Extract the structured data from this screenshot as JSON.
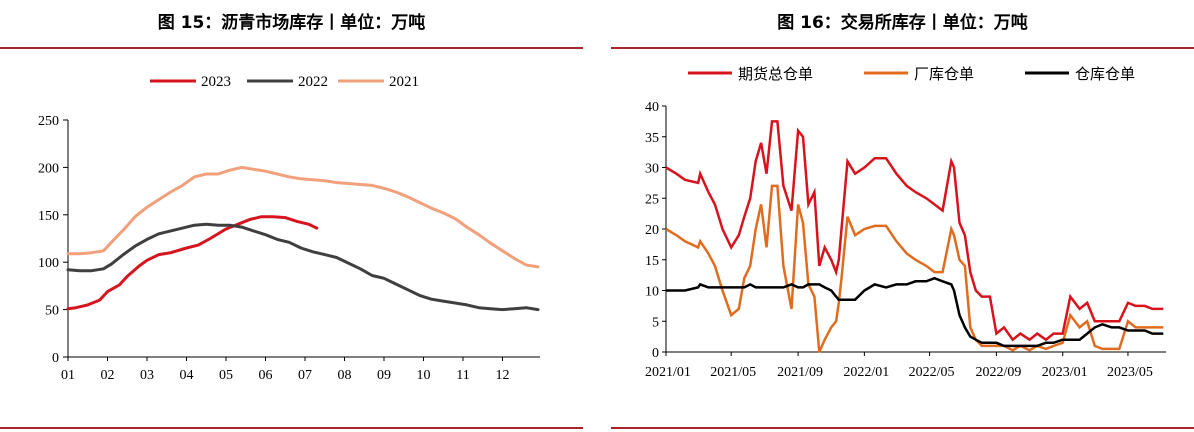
{
  "left": {
    "title": "图 15：沥青市场库存丨单位：万吨"
  },
  "right": {
    "title": "图 16：交易所库存丨单位：万吨"
  },
  "chart_data": [
    {
      "type": "line",
      "x": [
        "01",
        "02",
        "03",
        "04",
        "05",
        "06",
        "07",
        "08",
        "09",
        "10",
        "11",
        "12"
      ],
      "ylim": [
        0,
        250
      ],
      "yticks": [
        "0",
        "50",
        "100",
        "150",
        "200",
        "250"
      ],
      "grid": false,
      "legend_position": "top",
      "colors": {
        "2023": "#d7141e",
        "2022": "#3f3f3f",
        "2021": "#f2a07c"
      },
      "series": [
        {
          "name": "2023",
          "x": [
            1.0,
            1.2,
            1.5,
            1.8,
            2.0,
            2.3,
            2.5,
            2.8,
            3.0,
            3.3,
            3.6,
            4.0,
            4.3,
            4.6,
            5.0,
            5.3,
            5.6,
            5.9,
            6.2,
            6.5,
            6.8,
            7.1,
            7.3
          ],
          "values": [
            51,
            52,
            55,
            60,
            69,
            76,
            85,
            96,
            102,
            108,
            110,
            115,
            118,
            125,
            135,
            140,
            145,
            148,
            148,
            147,
            143,
            140,
            136
          ]
        },
        {
          "name": "2022",
          "x": [
            1.0,
            1.3,
            1.6,
            1.9,
            2.1,
            2.4,
            2.7,
            3.0,
            3.3,
            3.6,
            3.9,
            4.2,
            4.5,
            4.8,
            5.1,
            5.4,
            5.7,
            6.0,
            6.3,
            6.6,
            6.9,
            7.2,
            7.5,
            7.8,
            8.1,
            8.4,
            8.7,
            9.0,
            9.3,
            9.6,
            9.9,
            10.2,
            10.5,
            10.8,
            11.1,
            11.4,
            11.7,
            12.0,
            12.3,
            12.6,
            12.9
          ],
          "values": [
            92,
            91,
            91,
            93,
            98,
            108,
            117,
            124,
            130,
            133,
            136,
            139,
            140,
            139,
            139,
            137,
            133,
            129,
            124,
            121,
            115,
            111,
            108,
            105,
            99,
            93,
            86,
            83,
            77,
            71,
            65,
            61,
            59,
            57,
            55,
            52,
            51,
            50,
            51,
            52,
            50
          ]
        },
        {
          "name": "2021",
          "x": [
            1.0,
            1.3,
            1.6,
            1.9,
            2.1,
            2.4,
            2.7,
            3.0,
            3.3,
            3.6,
            3.9,
            4.2,
            4.5,
            4.8,
            5.1,
            5.4,
            5.7,
            6.0,
            6.3,
            6.6,
            6.9,
            7.2,
            7.5,
            7.8,
            8.1,
            8.4,
            8.7,
            9.0,
            9.3,
            9.6,
            9.9,
            10.2,
            10.5,
            10.8,
            11.1,
            11.4,
            11.7,
            12.0,
            12.3,
            12.6,
            12.9
          ],
          "values": [
            109,
            109,
            110,
            112,
            121,
            134,
            148,
            158,
            166,
            174,
            181,
            190,
            193,
            193,
            197,
            200,
            198,
            196,
            193,
            190,
            188,
            187,
            186,
            184,
            183,
            182,
            181,
            178,
            174,
            169,
            163,
            157,
            152,
            146,
            137,
            129,
            120,
            112,
            104,
            97,
            95
          ]
        }
      ]
    },
    {
      "type": "line",
      "x": [
        "2021/01",
        "2021/05",
        "2021/09",
        "2022/01",
        "2022/05",
        "2022/09",
        "2023/01",
        "2023/05"
      ],
      "ylim": [
        0,
        40
      ],
      "yticks": [
        "0",
        "5",
        "10",
        "15",
        "20",
        "25",
        "30",
        "35",
        "40"
      ],
      "grid": false,
      "legend_position": "top",
      "colors": {
        "期货总仓单": "#d7141e",
        "厂库仓单": "#e06d1f",
        "仓库仓单": "#000000"
      },
      "series": [
        {
          "name": "期货总仓单",
          "x": [
            "2021-01-01",
            "2021-01-20",
            "2021-02-05",
            "2021-03-01",
            "2021-03-05",
            "2021-03-20",
            "2021-04-01",
            "2021-04-15",
            "2021-05-01",
            "2021-05-15",
            "2021-05-25",
            "2021-06-05",
            "2021-06-15",
            "2021-06-25",
            "2021-07-05",
            "2021-07-15",
            "2021-07-25",
            "2021-08-05",
            "2021-08-20",
            "2021-09-01",
            "2021-09-10",
            "2021-09-20",
            "2021-10-01",
            "2021-10-10",
            "2021-10-20",
            "2021-11-01",
            "2021-11-10",
            "2021-11-15",
            "2021-11-20",
            "2021-12-01",
            "2021-12-15",
            "2022-01-01",
            "2022-01-20",
            "2022-02-10",
            "2022-03-01",
            "2022-03-20",
            "2022-04-05",
            "2022-04-25",
            "2022-05-10",
            "2022-05-25",
            "2022-06-10",
            "2022-06-15",
            "2022-06-25",
            "2022-07-05",
            "2022-07-15",
            "2022-07-25",
            "2022-08-05",
            "2022-08-20",
            "2022-09-01",
            "2022-09-15",
            "2022-10-01",
            "2022-10-15",
            "2022-11-01",
            "2022-11-15",
            "2022-12-01",
            "2022-12-15",
            "2023-01-01",
            "2023-01-15",
            "2023-02-01",
            "2023-02-15",
            "2023-03-01",
            "2023-03-15",
            "2023-04-01",
            "2023-04-15",
            "2023-05-01",
            "2023-05-15",
            "2023-06-01",
            "2023-06-15",
            "2023-07-05"
          ],
          "values": [
            30,
            29,
            28,
            27.5,
            29,
            26,
            24,
            20,
            17,
            19,
            22,
            25,
            31,
            34,
            29,
            37.5,
            37.5,
            27,
            23,
            36,
            35,
            24,
            26,
            14,
            17,
            15,
            13,
            15,
            20,
            31,
            29,
            30,
            31.5,
            31.5,
            29,
            27,
            26,
            25,
            24,
            23,
            31,
            30,
            21,
            19,
            13,
            10,
            9,
            9,
            3,
            4,
            2,
            3,
            2,
            3,
            2,
            3,
            3,
            9,
            7,
            8,
            5,
            5,
            5,
            5,
            8,
            7.5,
            7.5,
            7,
            7
          ]
        },
        {
          "name": "厂库仓单",
          "x": [
            "2021-01-01",
            "2021-01-20",
            "2021-02-05",
            "2021-03-01",
            "2021-03-05",
            "2021-03-20",
            "2021-04-01",
            "2021-04-15",
            "2021-05-01",
            "2021-05-15",
            "2021-05-25",
            "2021-06-05",
            "2021-06-15",
            "2021-06-25",
            "2021-07-05",
            "2021-07-15",
            "2021-07-25",
            "2021-08-05",
            "2021-08-20",
            "2021-09-01",
            "2021-09-10",
            "2021-09-20",
            "2021-10-01",
            "2021-10-10",
            "2021-10-20",
            "2021-11-01",
            "2021-11-10",
            "2021-11-15",
            "2021-11-20",
            "2021-12-01",
            "2021-12-15",
            "2022-01-01",
            "2022-01-20",
            "2022-02-10",
            "2022-03-01",
            "2022-03-20",
            "2022-04-05",
            "2022-04-25",
            "2022-05-10",
            "2022-05-25",
            "2022-06-10",
            "2022-06-15",
            "2022-06-25",
            "2022-07-05",
            "2022-07-15",
            "2022-07-25",
            "2022-08-05",
            "2022-08-20",
            "2022-09-01",
            "2022-09-15",
            "2022-10-01",
            "2022-10-15",
            "2022-11-01",
            "2022-11-15",
            "2022-12-01",
            "2022-12-15",
            "2023-01-01",
            "2023-01-15",
            "2023-02-01",
            "2023-02-15",
            "2023-03-01",
            "2023-03-15",
            "2023-04-01",
            "2023-04-15",
            "2023-05-01",
            "2023-05-15",
            "2023-06-01",
            "2023-06-15",
            "2023-07-05"
          ],
          "values": [
            20,
            19,
            18,
            17,
            18,
            16,
            14,
            10,
            6,
            7,
            12,
            14,
            20,
            24,
            17,
            27,
            27,
            14,
            7,
            24,
            21,
            11,
            9,
            0,
            2,
            4,
            5,
            8,
            12,
            22,
            19,
            20,
            20.5,
            20.5,
            18,
            16,
            15,
            14,
            13,
            13,
            20,
            19,
            15,
            14,
            4,
            2,
            1,
            1,
            1,
            1,
            0.3,
            1,
            0.3,
            1,
            0.5,
            1,
            1.5,
            6,
            4,
            5,
            1,
            0.5,
            0.5,
            0.5,
            5,
            4,
            4,
            4,
            4
          ]
        },
        {
          "name": "仓库仓单",
          "x": [
            "2021-01-01",
            "2021-01-20",
            "2021-02-05",
            "2021-03-01",
            "2021-03-05",
            "2021-03-20",
            "2021-04-01",
            "2021-04-15",
            "2021-05-01",
            "2021-05-15",
            "2021-05-25",
            "2021-06-05",
            "2021-06-15",
            "2021-06-25",
            "2021-07-05",
            "2021-07-15",
            "2021-07-25",
            "2021-08-05",
            "2021-08-20",
            "2021-09-01",
            "2021-09-10",
            "2021-09-20",
            "2021-10-01",
            "2021-10-10",
            "2021-10-20",
            "2021-11-01",
            "2021-11-10",
            "2021-11-15",
            "2021-11-20",
            "2021-12-01",
            "2021-12-15",
            "2022-01-01",
            "2022-01-20",
            "2022-02-10",
            "2022-03-01",
            "2022-03-20",
            "2022-04-05",
            "2022-04-25",
            "2022-05-10",
            "2022-05-25",
            "2022-06-10",
            "2022-06-15",
            "2022-06-25",
            "2022-07-05",
            "2022-07-15",
            "2022-07-25",
            "2022-08-05",
            "2022-08-20",
            "2022-09-01",
            "2022-09-15",
            "2022-10-01",
            "2022-10-15",
            "2022-11-01",
            "2022-11-15",
            "2022-12-01",
            "2022-12-15",
            "2023-01-01",
            "2023-01-15",
            "2023-02-01",
            "2023-02-15",
            "2023-03-01",
            "2023-03-15",
            "2023-04-01",
            "2023-04-15",
            "2023-05-01",
            "2023-05-15",
            "2023-06-01",
            "2023-06-15",
            "2023-07-05"
          ],
          "values": [
            10,
            10,
            10,
            10.5,
            11,
            10.5,
            10.5,
            10.5,
            10.5,
            10.5,
            10.5,
            11,
            10.5,
            10.5,
            10.5,
            10.5,
            10.5,
            10.5,
            11,
            10.5,
            10.5,
            11,
            11,
            11,
            10.5,
            10,
            9,
            8.5,
            8.5,
            8.5,
            8.5,
            10,
            11,
            10.5,
            11,
            11,
            11.5,
            11.5,
            12,
            11.5,
            11,
            10,
            6,
            4,
            2.5,
            2,
            1.5,
            1.5,
            1.5,
            1,
            1,
            1,
            1,
            1,
            1.5,
            1.5,
            2,
            2,
            2,
            3,
            4,
            4.5,
            4,
            4,
            3.5,
            3.5,
            3.5,
            3,
            3
          ]
        }
      ]
    }
  ]
}
